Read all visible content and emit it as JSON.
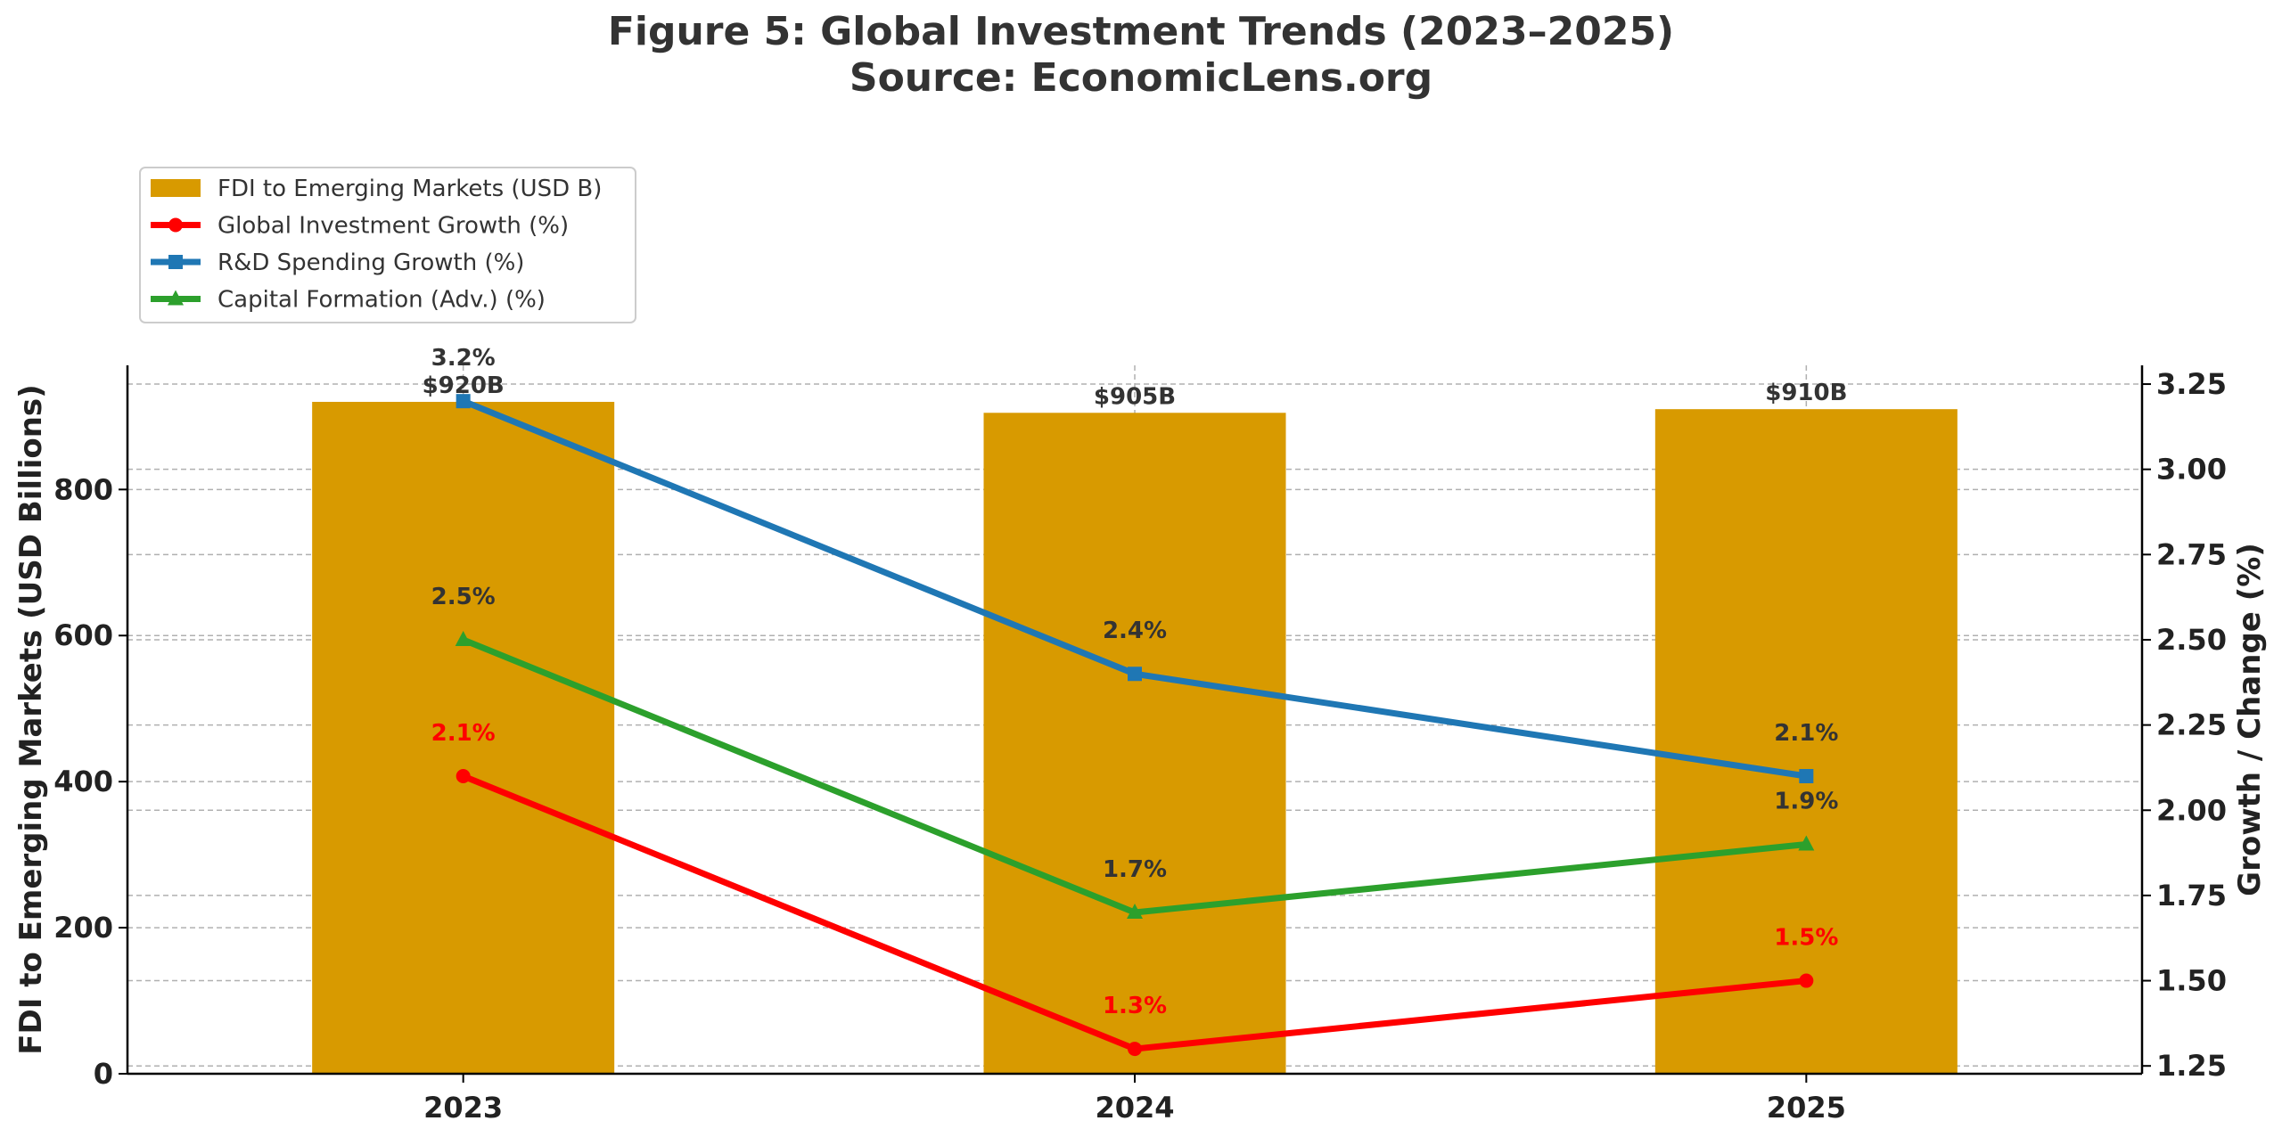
{
  "chart_data": {
    "type": "bar",
    "title": "Figure 5: Global Investment Trends (2023–2025)",
    "subtitle": "Source: EconomicLens.org",
    "categories": [
      "2023",
      "2024",
      "2025"
    ],
    "left_axis": {
      "label": "FDI to Emerging Markets (USD Billions)",
      "ylim": [
        0,
        970
      ],
      "ticks": [
        0,
        200,
        400,
        600,
        800
      ],
      "tick_labels": [
        "0",
        "200",
        "400",
        "600",
        "800"
      ]
    },
    "right_axis": {
      "label": "Growth / Change (%)",
      "ylim": [
        1.227,
        3.305
      ],
      "ticks": [
        1.25,
        1.5,
        1.75,
        2.0,
        2.25,
        2.5,
        2.75,
        3.0,
        3.25
      ],
      "tick_labels": [
        "1.25",
        "1.50",
        "1.75",
        "2.00",
        "2.25",
        "2.50",
        "2.75",
        "3.00",
        "3.25"
      ]
    },
    "bars": {
      "name": "FDI to Emerging Markets (USD B)",
      "axis": "left",
      "color": "#D89A00",
      "values": [
        920,
        905,
        910
      ],
      "labels": [
        "$920B",
        "$905B",
        "$910B"
      ]
    },
    "series": [
      {
        "name": "Global Investment Growth (%)",
        "axis": "right",
        "color": "#FF0000",
        "label_color": "#FF0000",
        "marker": "circle",
        "values": [
          2.1,
          1.3,
          1.5
        ],
        "labels": [
          "2.1%",
          "1.3%",
          "1.5%"
        ]
      },
      {
        "name": "R&D Spending Growth (%)",
        "axis": "right",
        "color": "#1F77B4",
        "label_color": "#333333",
        "marker": "square",
        "values": [
          3.2,
          2.4,
          2.1
        ],
        "labels": [
          "3.2%",
          "2.4%",
          "2.1%"
        ]
      },
      {
        "name": "Capital Formation (Adv.) (%)",
        "axis": "right",
        "color": "#2CA02C",
        "label_color": "#333333",
        "marker": "triangle",
        "values": [
          2.5,
          1.7,
          1.9
        ],
        "labels": [
          "2.5%",
          "1.7%",
          "1.9%"
        ]
      }
    ],
    "legend_position": "upper-left, above plot",
    "grid": true
  }
}
